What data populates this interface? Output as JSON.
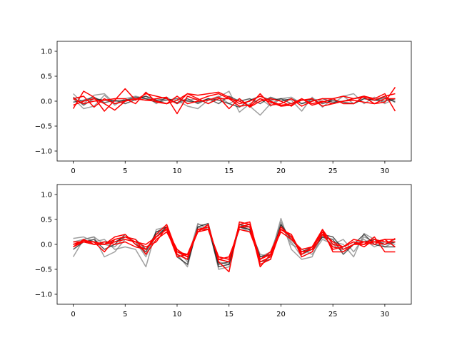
{
  "chart_data": [
    {
      "type": "line",
      "title": "",
      "xlabel": "",
      "ylabel": "",
      "xlim": [
        -1.55,
        32.55
      ],
      "ylim": [
        -1.2,
        1.2
      ],
      "xticks": [
        0,
        5,
        10,
        15,
        20,
        25,
        30
      ],
      "yticks": [
        -1.0,
        -0.5,
        0.0,
        0.5,
        1.0
      ],
      "xtick_labels": [
        "0",
        "5",
        "10",
        "15",
        "20",
        "25",
        "30"
      ],
      "ytick_labels": [
        "−1.0",
        "−0.5",
        "0.0",
        "0.5",
        "1.0"
      ],
      "grid": false,
      "x": [
        0,
        1,
        2,
        3,
        4,
        5,
        6,
        7,
        8,
        9,
        10,
        11,
        12,
        13,
        14,
        15,
        16,
        17,
        18,
        19,
        20,
        21,
        22,
        23,
        24,
        25,
        26,
        27,
        28,
        29,
        30,
        31
      ],
      "series": [
        {
          "color": "#808080",
          "opacity": 0.75,
          "values": [
            0.15,
            -0.05,
            0.12,
            0.15,
            -0.05,
            0.02,
            0.05,
            0.1,
            -0.05,
            0.08,
            -0.05,
            0.02,
            0.05,
            -0.05,
            0.08,
            0.2,
            -0.22,
            -0.05,
            0.05,
            -0.1,
            0.05,
            0.08,
            -0.05,
            0.05,
            0.0,
            -0.05,
            0.1,
            -0.05,
            0.05,
            0.02,
            0.05,
            0.0
          ]
        },
        {
          "color": "#808080",
          "opacity": 0.75,
          "values": [
            0.05,
            -0.15,
            -0.1,
            0.12,
            -0.08,
            0.05,
            0.1,
            0.05,
            0.02,
            -0.05,
            0.02,
            -0.1,
            -0.15,
            0.02,
            0.1,
            -0.05,
            0.05,
            -0.1,
            -0.28,
            -0.05,
            0.05,
            0.02,
            -0.2,
            0.08,
            -0.12,
            0.05,
            0.1,
            0.15,
            -0.05,
            0.08,
            -0.05,
            0.05
          ]
        },
        {
          "color": "#000000",
          "opacity": 0.6,
          "values": [
            -0.02,
            0.02,
            0.08,
            -0.03,
            0.02,
            -0.05,
            0.03,
            0.1,
            0.02,
            0.05,
            -0.03,
            0.05,
            -0.05,
            0.05,
            0.02,
            -0.05,
            -0.12,
            0.02,
            0.1,
            0.02,
            0.05,
            -0.05,
            0.02,
            0.03,
            -0.05,
            0.02,
            -0.02,
            -0.05,
            0.05,
            0.02,
            0.08,
            -0.02
          ]
        },
        {
          "color": "#000000",
          "opacity": 0.6,
          "values": [
            0.08,
            -0.08,
            0.05,
            0.02,
            0.0,
            0.02,
            0.08,
            0.05,
            -0.02,
            0.02,
            0.05,
            0.0,
            -0.02,
            0.05,
            -0.05,
            0.1,
            0.0,
            0.05,
            -0.05,
            0.08,
            0.0,
            0.05,
            -0.05,
            0.0,
            0.05,
            -0.02,
            0.0,
            0.05,
            0.1,
            0.02,
            0.0,
            0.05
          ]
        },
        {
          "color": "#ff0000",
          "opacity": 1.0,
          "values": [
            -0.15,
            0.2,
            0.08,
            -0.2,
            0.02,
            0.25,
            0.02,
            0.15,
            0.1,
            0.05,
            -0.05,
            0.15,
            0.05,
            -0.05,
            0.05,
            0.05,
            0.0,
            -0.1,
            0.05,
            -0.02,
            -0.1,
            -0.08,
            0.02,
            0.05,
            -0.1,
            -0.05,
            0.0,
            0.02,
            -0.02,
            -0.05,
            -0.02,
            0.28
          ]
        },
        {
          "color": "#ff0000",
          "opacity": 1.0,
          "values": [
            0.05,
            0.1,
            -0.12,
            0.05,
            -0.05,
            0.0,
            0.05,
            0.02,
            0.05,
            0.08,
            -0.25,
            0.1,
            0.02,
            0.1,
            0.15,
            0.05,
            -0.1,
            -0.08,
            0.15,
            -0.08,
            -0.05,
            0.05,
            -0.1,
            0.0,
            0.05,
            0.05,
            -0.05,
            -0.05,
            0.1,
            0.05,
            0.15,
            -0.2
          ]
        },
        {
          "color": "#ff0000",
          "opacity": 1.0,
          "values": [
            -0.08,
            0.0,
            0.05,
            -0.05,
            -0.18,
            0.0,
            0.05,
            0.02,
            0.0,
            -0.05,
            0.02,
            0.15,
            0.12,
            0.15,
            0.18,
            0.08,
            -0.05,
            0.0,
            0.1,
            0.0,
            -0.08,
            -0.05,
            0.05,
            -0.08,
            -0.02,
            0.05,
            0.1,
            0.05,
            0.1,
            0.02,
            0.1,
            0.15
          ]
        },
        {
          "color": "#ff0000",
          "opacity": 1.0,
          "values": [
            0.05,
            -0.05,
            0.0,
            0.02,
            0.05,
            0.05,
            -0.05,
            0.18,
            -0.02,
            -0.05,
            0.1,
            -0.05,
            0.0,
            0.02,
            0.08,
            -0.15,
            0.05,
            -0.12,
            0.0,
            0.05,
            0.0,
            -0.1,
            0.05,
            -0.05,
            0.0,
            -0.05,
            0.0,
            0.05,
            0.08,
            -0.05,
            0.05,
            0.05
          ]
        }
      ]
    },
    {
      "type": "line",
      "title": "",
      "xlabel": "",
      "ylabel": "",
      "xlim": [
        -1.55,
        32.55
      ],
      "ylim": [
        -1.2,
        1.2
      ],
      "xticks": [
        0,
        5,
        10,
        15,
        20,
        25,
        30
      ],
      "yticks": [
        -1.0,
        -0.5,
        0.0,
        0.5,
        1.0
      ],
      "xtick_labels": [
        "0",
        "5",
        "10",
        "15",
        "20",
        "25",
        "30"
      ],
      "ytick_labels": [
        "−1.0",
        "−0.5",
        "0.0",
        "0.5",
        "1.0"
      ],
      "grid": false,
      "x": [
        0,
        1,
        2,
        3,
        4,
        5,
        6,
        7,
        8,
        9,
        10,
        11,
        12,
        13,
        14,
        15,
        16,
        17,
        18,
        19,
        20,
        21,
        22,
        23,
        24,
        25,
        26,
        27,
        28,
        29,
        30,
        31
      ],
      "series": [
        {
          "color": "#808080",
          "opacity": 0.75,
          "values": [
            0.12,
            0.15,
            0.05,
            0.1,
            -0.1,
            -0.05,
            -0.1,
            -0.45,
            0.3,
            0.35,
            -0.2,
            -0.45,
            0.4,
            0.38,
            -0.5,
            -0.45,
            0.35,
            0.3,
            -0.2,
            -0.25,
            0.52,
            -0.1,
            -0.3,
            -0.25,
            0.2,
            0.05,
            0.0,
            -0.25,
            0.22,
            0.1,
            -0.05,
            0.05
          ]
        },
        {
          "color": "#808080",
          "opacity": 0.75,
          "values": [
            -0.25,
            0.1,
            0.15,
            -0.25,
            -0.15,
            0.1,
            0.05,
            -0.2,
            0.2,
            0.3,
            -0.1,
            -0.35,
            0.35,
            0.3,
            -0.35,
            -0.4,
            0.4,
            0.28,
            -0.3,
            -0.2,
            0.45,
            0.05,
            -0.25,
            -0.15,
            0.15,
            0.0,
            0.1,
            -0.15,
            0.15,
            0.05,
            0.0,
            0.1
          ]
        },
        {
          "color": "#808080",
          "opacity": 0.75,
          "values": [
            0.05,
            0.1,
            0.15,
            0.0,
            -0.05,
            0.15,
            0.05,
            -0.25,
            0.25,
            0.3,
            -0.2,
            -0.3,
            0.42,
            0.3,
            -0.3,
            -0.35,
            0.35,
            0.25,
            -0.25,
            -0.15,
            0.4,
            0.0,
            -0.1,
            -0.2,
            0.1,
            0.0,
            -0.15,
            0.0,
            0.1,
            -0.05,
            0.05,
            0.0
          ]
        },
        {
          "color": "#000000",
          "opacity": 0.65,
          "values": [
            0.0,
            0.05,
            0.1,
            -0.1,
            0.0,
            0.2,
            0.0,
            -0.15,
            0.25,
            0.35,
            -0.25,
            -0.4,
            0.35,
            0.42,
            -0.4,
            -0.35,
            0.4,
            0.35,
            -0.25,
            -0.2,
            0.35,
            0.15,
            -0.2,
            -0.1,
            0.15,
            0.1,
            -0.2,
            0.0,
            0.2,
            0.0,
            -0.05,
            -0.05
          ]
        },
        {
          "color": "#000000",
          "opacity": 0.65,
          "values": [
            -0.1,
            0.05,
            0.0,
            0.05,
            0.05,
            0.15,
            0.1,
            -0.1,
            0.15,
            0.35,
            -0.2,
            -0.3,
            0.3,
            0.35,
            -0.45,
            -0.4,
            0.35,
            0.3,
            -0.35,
            -0.3,
            0.4,
            0.1,
            -0.15,
            -0.05,
            0.2,
            0.15,
            -0.1,
            0.0,
            0.05,
            0.1,
            0.0,
            0.05
          ]
        },
        {
          "color": "#ff0000",
          "opacity": 1.0,
          "values": [
            -0.05,
            0.1,
            0.0,
            0.0,
            0.15,
            0.2,
            0.0,
            -0.1,
            0.2,
            0.4,
            -0.15,
            -0.25,
            0.25,
            0.4,
            -0.35,
            -0.55,
            0.45,
            0.4,
            -0.45,
            -0.2,
            0.3,
            0.2,
            -0.2,
            -0.05,
            0.3,
            -0.15,
            -0.15,
            0.0,
            0.0,
            0.15,
            -0.15,
            -0.15
          ]
        },
        {
          "color": "#ff0000",
          "opacity": 1.0,
          "values": [
            0.0,
            0.05,
            0.05,
            -0.15,
            0.1,
            0.15,
            0.05,
            -0.05,
            0.05,
            0.35,
            -0.2,
            -0.3,
            0.3,
            0.35,
            -0.3,
            -0.35,
            0.4,
            0.45,
            -0.35,
            -0.25,
            0.35,
            0.15,
            -0.15,
            -0.1,
            0.25,
            -0.1,
            -0.05,
            0.05,
            -0.05,
            0.1,
            0.05,
            0.05
          ]
        },
        {
          "color": "#ff0000",
          "opacity": 1.0,
          "values": [
            -0.05,
            0.05,
            0.05,
            0.0,
            0.05,
            0.1,
            0.05,
            0.0,
            0.15,
            0.3,
            -0.25,
            -0.2,
            0.25,
            0.3,
            -0.25,
            -0.3,
            0.35,
            0.35,
            -0.4,
            -0.3,
            0.3,
            0.2,
            -0.25,
            -0.15,
            0.2,
            -0.05,
            -0.1,
            0.0,
            0.05,
            0.05,
            0.1,
            0.1
          ]
        },
        {
          "color": "#ff0000",
          "opacity": 1.0,
          "values": [
            0.05,
            0.05,
            0.0,
            0.05,
            0.0,
            0.05,
            -0.05,
            -0.1,
            0.15,
            0.3,
            -0.1,
            -0.25,
            0.3,
            0.35,
            -0.3,
            -0.25,
            0.3,
            0.25,
            -0.3,
            -0.2,
            0.25,
            0.1,
            -0.1,
            -0.05,
            0.25,
            0.05,
            -0.05,
            0.05,
            0.0,
            0.05,
            0.0,
            0.12
          ]
        },
        {
          "color": "#ff0000",
          "opacity": 1.0,
          "values": [
            0.0,
            0.08,
            0.05,
            0.0,
            0.1,
            0.15,
            0.1,
            -0.2,
            0.1,
            0.25,
            -0.15,
            -0.2,
            0.3,
            0.3,
            -0.25,
            -0.3,
            0.35,
            0.4,
            -0.3,
            -0.15,
            0.3,
            0.15,
            -0.15,
            -0.1,
            0.3,
            0.0,
            -0.05,
            0.1,
            0.05,
            0.0,
            0.1,
            -0.05
          ]
        }
      ]
    }
  ]
}
